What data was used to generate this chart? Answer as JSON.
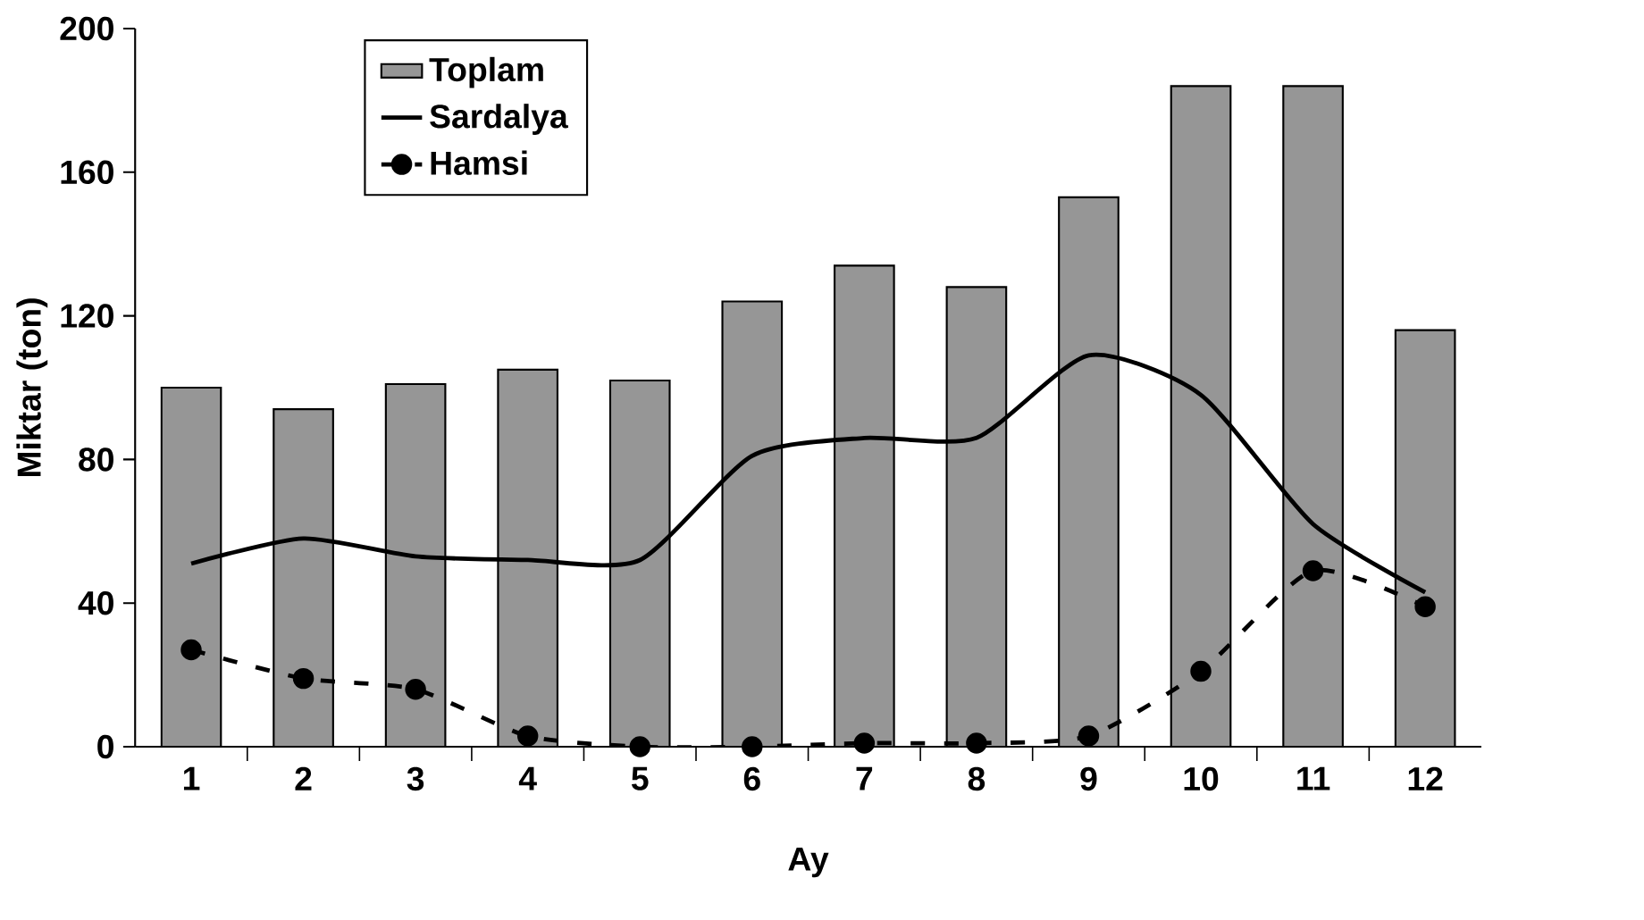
{
  "chart_data": {
    "type": "bar",
    "xlabel": "Ay",
    "ylabel": "Miktar (ton)",
    "categories": [
      "1",
      "2",
      "3",
      "4",
      "5",
      "6",
      "7",
      "8",
      "9",
      "10",
      "11",
      "12"
    ],
    "series": [
      {
        "name": "Toplam",
        "color": "#969696",
        "values": [
          100,
          94,
          101,
          105,
          102,
          124,
          134,
          128,
          153,
          184,
          184,
          116
        ]
      },
      {
        "name": "Sardalya",
        "type": "line",
        "color": "#000000",
        "line_style": "solid",
        "marker": "none",
        "values": [
          51,
          58,
          53,
          52,
          52,
          81,
          86,
          86,
          109,
          98,
          62,
          43
        ]
      },
      {
        "name": "Hamsi",
        "type": "line",
        "color": "#000000",
        "line_style": "dashed",
        "marker": "circle",
        "values": [
          27,
          19,
          16,
          3,
          0,
          0,
          1,
          1,
          3,
          21,
          49,
          39
        ]
      }
    ],
    "ylim": [
      0,
      200
    ],
    "yticks": [
      0,
      40,
      80,
      120,
      160,
      200
    ],
    "legend": "top left"
  }
}
